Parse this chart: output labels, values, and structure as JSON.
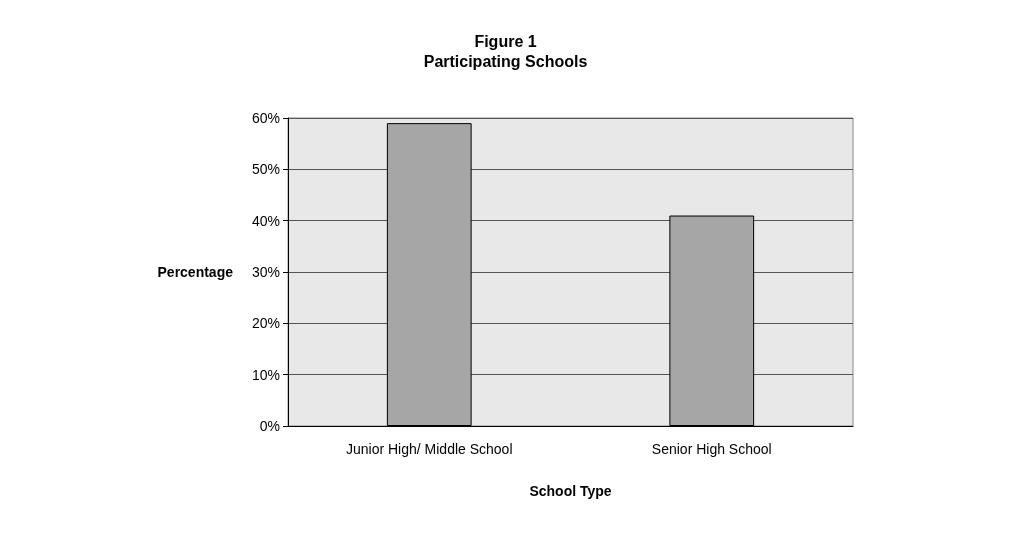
{
  "chart_data": {
    "type": "bar",
    "title": "Figure 1\nParticipating Schools",
    "xlabel": "School Type",
    "ylabel": "Percentage",
    "categories": [
      "Junior High/ Middle School",
      "Senior High School"
    ],
    "values": [
      59,
      41
    ],
    "color": "#a6a6a6",
    "ylim": [
      0,
      60
    ],
    "yticks": [
      {
        "value": 0,
        "label": "0%"
      },
      {
        "value": 10,
        "label": "10%"
      },
      {
        "value": 20,
        "label": "20%"
      },
      {
        "value": 30,
        "label": "30%"
      },
      {
        "value": 40,
        "label": "40%"
      },
      {
        "value": 50,
        "label": "50%"
      },
      {
        "value": 60,
        "label": "60%"
      }
    ],
    "grid": "y"
  }
}
